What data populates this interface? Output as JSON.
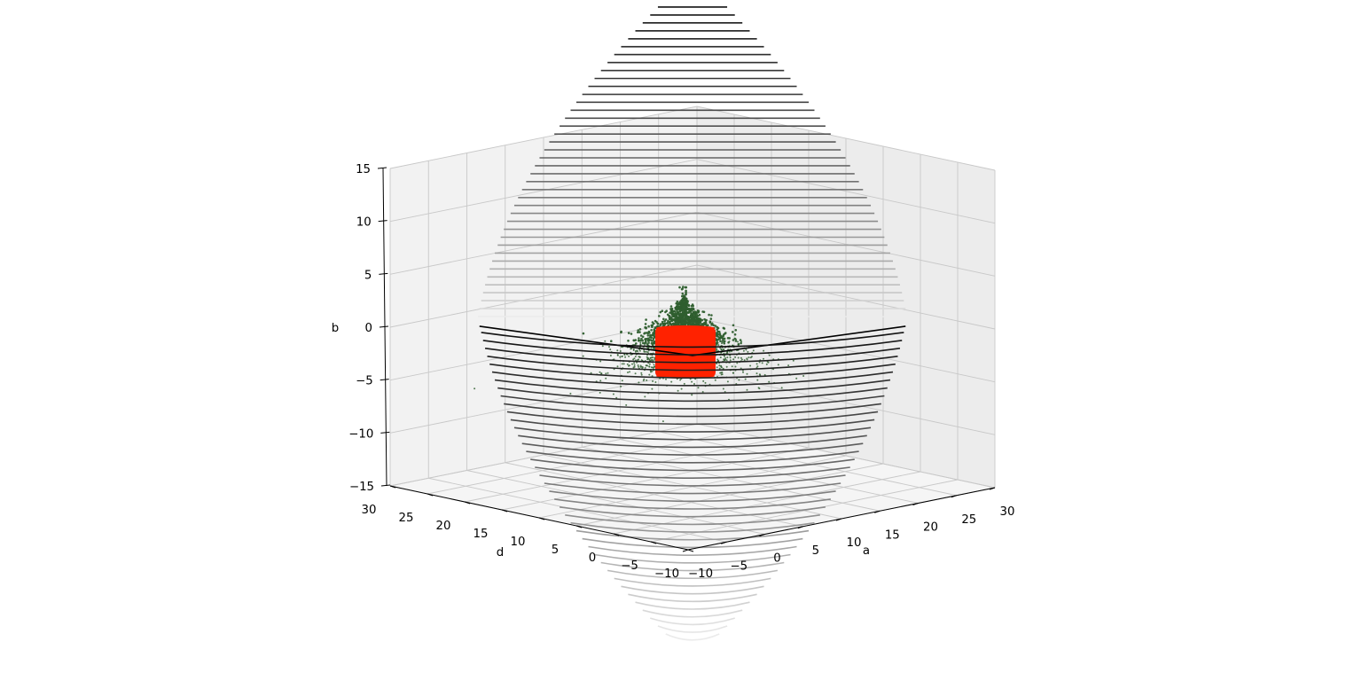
{
  "chart_data": {
    "type": "scatter",
    "projection": "3d",
    "axes": {
      "x": {
        "label": "a",
        "range": [
          -10,
          30
        ],
        "ticks": [
          "−10",
          "−5",
          "0",
          "5",
          "10",
          "15",
          "20",
          "25",
          "30"
        ]
      },
      "y": {
        "label": "d",
        "range": [
          -10,
          30
        ],
        "ticks": [
          "−10",
          "−5",
          "0",
          "5",
          "10",
          "15",
          "20",
          "25",
          "30"
        ]
      },
      "z": {
        "label": "b",
        "range": [
          -15,
          15
        ],
        "ticks": [
          "−15",
          "−10",
          "−5",
          "0",
          "5",
          "10",
          "15"
        ]
      }
    },
    "grid": true,
    "surface": {
      "kind": "horizontal contour slices of a double-cone envelope",
      "color": "#000000",
      "z_range": [
        -30,
        30
      ]
    },
    "series": [
      {
        "kind": "scatter cloud, bell-shaped around b = 0",
        "color": "#2e5e2e",
        "center": {
          "a": 0,
          "d": 0,
          "b": 0
        }
      },
      {
        "kind": "dense cube of points",
        "color": "#ff2200",
        "a_range": [
          -2,
          2
        ],
        "d_range": [
          -2,
          2
        ],
        "b_range": [
          -2,
          2
        ]
      }
    ]
  }
}
